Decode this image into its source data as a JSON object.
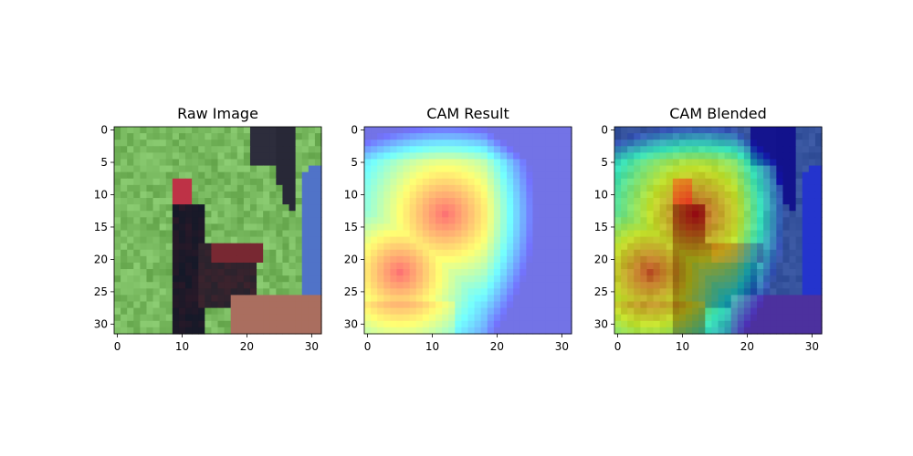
{
  "chart_data": [
    {
      "type": "heatmap",
      "title": "Raw Image",
      "xticks": [
        "0",
        "10",
        "20",
        "30"
      ],
      "yticks": [
        "0",
        "5",
        "10",
        "15",
        "20",
        "25",
        "30"
      ],
      "xlim": [
        -0.5,
        31.5
      ],
      "ylim": [
        31.5,
        -0.5
      ],
      "content": "photo"
    },
    {
      "type": "heatmap",
      "title": "CAM Result",
      "xticks": [
        "0",
        "10",
        "20",
        "30"
      ],
      "yticks": [
        "0",
        "5",
        "10",
        "15",
        "20",
        "25",
        "30"
      ],
      "xlim": [
        -0.5,
        31.5
      ],
      "ylim": [
        31.5,
        -0.5
      ],
      "content": "cam",
      "peak": {
        "x": 12,
        "y": 12
      },
      "colormap": "jet"
    },
    {
      "type": "heatmap",
      "title": "CAM Blended",
      "xticks": [
        "0",
        "10",
        "20",
        "30"
      ],
      "yticks": [
        "0",
        "5",
        "10",
        "15",
        "20",
        "25",
        "30"
      ],
      "xlim": [
        -0.5,
        31.5
      ],
      "ylim": [
        31.5,
        -0.5
      ],
      "content": "blend",
      "colormap": "jet"
    }
  ]
}
